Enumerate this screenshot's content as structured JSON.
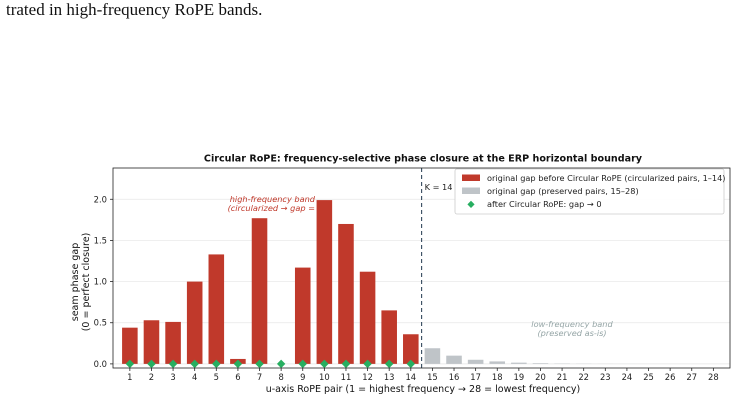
{
  "caption_fragment": "trated in high-frequency RoPE bands.",
  "colors": {
    "circularized_bar": "#c0392b",
    "preserved_bar": "#bfc4c8",
    "after_marker": "#27ae60",
    "k_line": "#34495e",
    "high_freq_text": "#c0392b",
    "low_freq_text": "#95a5a6"
  },
  "chart_data": {
    "type": "bar",
    "title": "Circular RoPE: frequency-selective phase closure at the ERP horizontal boundary",
    "xlabel": "u-axis RoPE pair   (1 = highest frequency  →  28 = lowest frequency)",
    "ylabel_line1": "seam phase gap",
    "ylabel_line2": "(0 = perfect closure)",
    "categories": [
      "1",
      "2",
      "3",
      "4",
      "5",
      "6",
      "7",
      "8",
      "9",
      "10",
      "11",
      "12",
      "13",
      "14",
      "15",
      "16",
      "17",
      "18",
      "19",
      "20",
      "21",
      "22",
      "23",
      "24",
      "25",
      "26",
      "27",
      "28"
    ],
    "values": [
      0.44,
      0.53,
      0.51,
      1.0,
      1.33,
      0.06,
      1.77,
      0.0,
      1.17,
      1.99,
      1.7,
      1.12,
      0.65,
      0.36,
      0.19,
      0.1,
      0.05,
      0.03,
      0.015,
      0.008,
      0.004,
      0.002,
      0.001,
      0.0005,
      0.0003,
      0.0002,
      0.0001,
      0.0001
    ],
    "circularized_pairs": 14,
    "after_values": [
      0,
      0,
      0,
      0,
      0,
      0,
      0,
      0,
      0,
      0,
      0,
      0,
      0,
      0
    ],
    "ylim": [
      -0.05,
      2.38
    ],
    "yticks": [
      "0.0",
      "0.5",
      "1.0",
      "1.5",
      "2.0"
    ],
    "grid": "horizontal",
    "k_line_at": 14.5,
    "k_label": "K = 14",
    "legend_position": "top-right",
    "legend": [
      {
        "label": "original gap before Circular RoPE  (circularized pairs, 1–14)",
        "kind": "bar-red"
      },
      {
        "label": "original gap  (preserved pairs, 15–28)",
        "kind": "bar-gray"
      },
      {
        "label": "after Circular RoPE: gap → 0",
        "kind": "marker-green"
      }
    ],
    "annotations": {
      "high_line1": "high-frequency band",
      "high_line2": "(circularized  →  gap = ",
      "low_line1": "low-frequency band",
      "low_line2": "(preserved as-is)"
    }
  }
}
